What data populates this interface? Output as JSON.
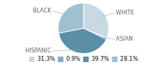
{
  "chart_data": {
    "type": "pie",
    "categories": [
      "WHITE",
      "ASIAN",
      "HISPANIC",
      "BLACK"
    ],
    "values": [
      31.3,
      0.9,
      39.7,
      28.1
    ],
    "value_labels": [
      "31.3%",
      "0.9%",
      "39.7%",
      "28.1%"
    ],
    "colors": [
      "#c8d9e4",
      "#7aafc4",
      "#5b8fa8",
      "#a0c0d0"
    ],
    "legend": "bottom"
  }
}
